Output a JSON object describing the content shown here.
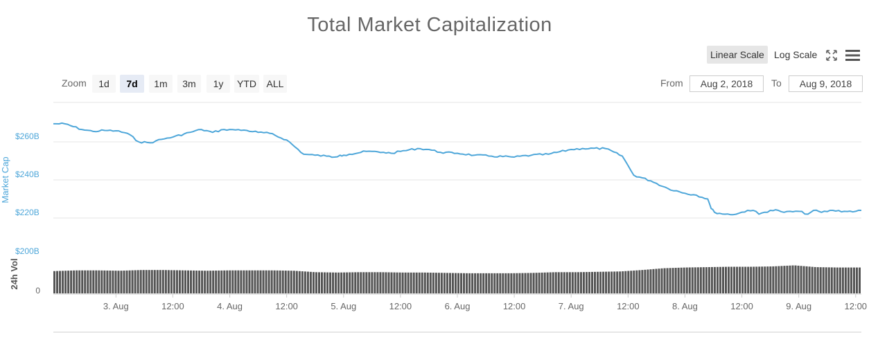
{
  "chart_data": {
    "type": "line",
    "title": "Total Market Capitalization",
    "ylabel": "Market Cap",
    "ylabel2": "24h Vol",
    "y_ticks": [
      "$260B",
      "$240B",
      "$220B",
      "$200B"
    ],
    "y2_ticks": [
      "0"
    ],
    "ylim": [
      200,
      272
    ],
    "x_ticks": [
      "3. Aug",
      "12:00",
      "4. Aug",
      "12:00",
      "5. Aug",
      "12:00",
      "6. Aug",
      "12:00",
      "7. Aug",
      "12:00",
      "8. Aug",
      "12:00",
      "9. Aug",
      "12:00"
    ],
    "x_tick_days": [
      1.0,
      1.5,
      2.0,
      2.5,
      3.0,
      3.5,
      4.0,
      4.5,
      5.0,
      5.5,
      6.0,
      6.5,
      7.0,
      7.5
    ],
    "xlim_days": [
      0.45,
      7.55
    ],
    "x_days": [
      0.45,
      0.55,
      0.7,
      0.8,
      0.9,
      1.0,
      1.1,
      1.2,
      1.3,
      1.35,
      1.45,
      1.5,
      1.65,
      1.75,
      1.85,
      1.95,
      2.0,
      2.05,
      2.15,
      2.25,
      2.35,
      2.5,
      2.65,
      2.75,
      2.85,
      2.92,
      2.97,
      3.0,
      3.05,
      3.2,
      3.35,
      3.42,
      3.5,
      3.65,
      3.75,
      3.85,
      4.0,
      4.15,
      4.3,
      4.5,
      4.65,
      4.8,
      5.0,
      5.1,
      5.3,
      5.45,
      5.55,
      5.7,
      5.85,
      6.0,
      6.1,
      6.2,
      6.23,
      6.26,
      6.35,
      6.45,
      6.55,
      6.6,
      6.65,
      6.75,
      6.82,
      6.87,
      7.0,
      7.08,
      7.13,
      7.2,
      7.3,
      7.4,
      7.5,
      7.55
    ],
    "values": [
      269.5,
      269.5,
      266.5,
      265.5,
      266.0,
      265.8,
      264.5,
      260.0,
      259.5,
      260.5,
      262.0,
      262.5,
      265.0,
      266.5,
      265.0,
      266.5,
      266.5,
      266.3,
      266.0,
      265.0,
      264.5,
      261.0,
      253.5,
      253.0,
      252.5,
      252.0,
      253.0,
      253.0,
      253.5,
      255.0,
      254.5,
      254.0,
      255.0,
      256.5,
      256.0,
      254.5,
      254.0,
      253.0,
      252.5,
      252.0,
      253.0,
      253.5,
      256.0,
      256.5,
      256.5,
      252.5,
      242.5,
      239.5,
      235.5,
      233.0,
      232.0,
      230.0,
      225.0,
      223.0,
      222.0,
      222.0,
      224.0,
      224.0,
      222.0,
      224.0,
      224.0,
      223.0,
      223.5,
      222.0,
      224.0,
      223.0,
      224.0,
      223.5,
      223.5,
      224.0
    ],
    "volume_relative": [
      0.62,
      0.64,
      0.64,
      0.63,
      0.65,
      0.65,
      0.64,
      0.63,
      0.64,
      0.64,
      0.64,
      0.63,
      0.59,
      0.58,
      0.59,
      0.59,
      0.58,
      0.58,
      0.57,
      0.56,
      0.56,
      0.56,
      0.57,
      0.59,
      0.59,
      0.6,
      0.61,
      0.65,
      0.7,
      0.72,
      0.73,
      0.74,
      0.74,
      0.75,
      0.78,
      0.73,
      0.72,
      0.72
    ],
    "line_color": "#4da6d9",
    "volume_color": "#555555",
    "grid": true
  },
  "controls": {
    "zoom_label": "Zoom",
    "zoom_buttons": [
      "1d",
      "7d",
      "1m",
      "3m",
      "1y",
      "YTD",
      "ALL"
    ],
    "zoom_active": "7d",
    "linear_scale": "Linear Scale",
    "log_scale": "Log Scale",
    "from_label": "From",
    "from_value": "Aug 2, 2018",
    "to_label": "To",
    "to_value": "Aug 9, 2018"
  },
  "icons": {
    "fullscreen": "fullscreen-icon",
    "menu": "hamburger-menu-icon"
  }
}
